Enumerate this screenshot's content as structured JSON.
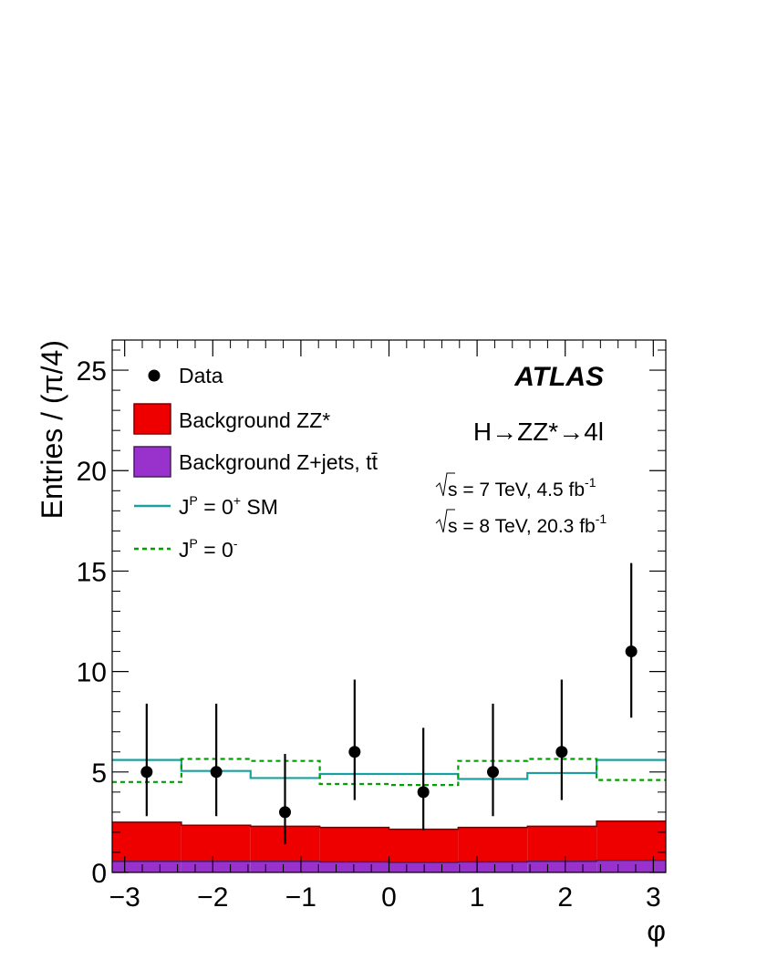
{
  "chart_data": {
    "type": "histogram",
    "xlabel": "φ",
    "ylabel": "Entries / (π/4)",
    "xlim": [
      -3.14159,
      3.14159
    ],
    "ylim": [
      0,
      26.5
    ],
    "x_ticks": [
      -3,
      -2,
      -1,
      0,
      1,
      2,
      3
    ],
    "x_tick_labels": [
      "−3",
      "−2",
      "−1",
      "0",
      "1",
      "2",
      "3"
    ],
    "y_ticks": [
      0,
      5,
      10,
      15,
      20,
      25
    ],
    "y_tick_labels": [
      "0",
      "5",
      "10",
      "15",
      "20",
      "25"
    ],
    "bin_edges": [
      -3.14159,
      -2.35619,
      -1.5708,
      -0.7854,
      0,
      0.7854,
      1.5708,
      2.35619,
      3.14159
    ],
    "series": [
      {
        "name": "Data",
        "kind": "points",
        "x": [
          -2.75,
          -1.96,
          -1.18,
          -0.39,
          0.39,
          1.18,
          1.96,
          2.75
        ],
        "values": [
          5,
          5,
          3,
          6,
          4,
          5,
          6,
          11
        ],
        "err_low": [
          2.2,
          2.2,
          1.6,
          2.4,
          1.9,
          2.2,
          2.4,
          3.3
        ],
        "err_high": [
          3.4,
          3.4,
          2.9,
          3.6,
          3.2,
          3.4,
          3.6,
          4.4
        ],
        "color": "#000000"
      },
      {
        "name": "Background ZZ*",
        "kind": "stacked_fill",
        "values": [
          1.95,
          1.8,
          1.75,
          1.72,
          1.65,
          1.72,
          1.75,
          1.95
        ],
        "color": "#ee0000"
      },
      {
        "name": "Background Z+jets, tt̄",
        "kind": "stacked_fill",
        "values": [
          0.55,
          0.55,
          0.55,
          0.52,
          0.5,
          0.52,
          0.55,
          0.6
        ],
        "color": "#9932cc"
      },
      {
        "name": "J^P = 0^+ SM",
        "kind": "step",
        "values": [
          5.6,
          5.05,
          4.7,
          4.9,
          4.9,
          4.65,
          4.95,
          5.6
        ],
        "color": "#1aa0a0",
        "dashed": false
      },
      {
        "name": "J^P = 0^-",
        "kind": "step",
        "values": [
          4.5,
          5.65,
          5.55,
          4.4,
          4.35,
          5.55,
          5.65,
          4.6
        ],
        "color": "#00a000",
        "dashed": true
      }
    ],
    "legend": {
      "placement": "top-left",
      "items": [
        {
          "label": "Data",
          "symbol": "marker"
        },
        {
          "label": "Background ZZ*",
          "symbol": "fill-red"
        },
        {
          "label": "Background Z+jets, tt̄",
          "symbol": "fill-purple"
        },
        {
          "label": "J^P = 0^+ SM",
          "symbol": "line-solid"
        },
        {
          "label": "J^P = 0^-",
          "symbol": "line-dashed"
        }
      ]
    },
    "annotations": {
      "experiment": "ATLAS",
      "process": "H→ZZ*→4l",
      "lumi_7": "s = 7 TeV, 4.5 fb",
      "lumi_7_sup": "-1",
      "lumi_8": "s = 8 TeV, 20.3 fb",
      "lumi_8_sup": "-1"
    },
    "grid": false
  }
}
